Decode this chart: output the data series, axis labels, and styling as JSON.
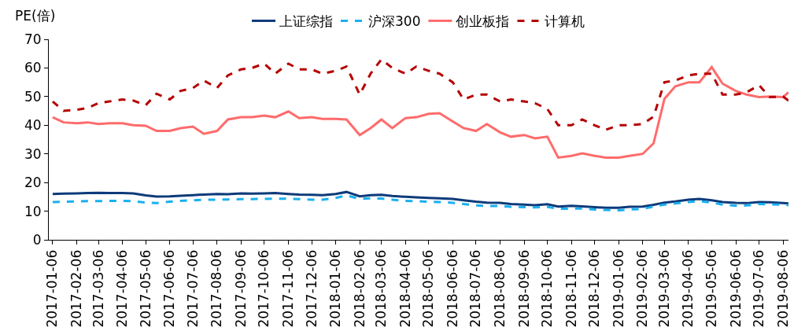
{
  "chart_data": {
    "type": "line",
    "ylabel": "PE(倍)",
    "legend": "top",
    "marker": "none",
    "x": [
      "2017-01-06",
      "2017-01-20",
      "2017-02-06",
      "2017-02-20",
      "2017-03-06",
      "2017-03-20",
      "2017-04-06",
      "2017-04-20",
      "2017-05-06",
      "2017-05-20",
      "2017-06-06",
      "2017-06-20",
      "2017-07-06",
      "2017-07-20",
      "2017-08-06",
      "2017-08-20",
      "2017-09-06",
      "2017-09-20",
      "2017-10-06",
      "2017-10-20",
      "2017-11-06",
      "2017-11-20",
      "2017-12-06",
      "2017-12-20",
      "2018-01-06",
      "2018-01-20",
      "2018-02-06",
      "2018-02-20",
      "2018-03-06",
      "2018-03-20",
      "2018-04-06",
      "2018-04-20",
      "2018-05-06",
      "2018-05-20",
      "2018-06-06",
      "2018-06-20",
      "2018-07-06",
      "2018-07-20",
      "2018-08-06",
      "2018-08-20",
      "2018-09-06",
      "2018-09-20",
      "2018-10-06",
      "2018-10-20",
      "2018-11-06",
      "2018-11-20",
      "2018-12-06",
      "2018-12-20",
      "2019-01-06",
      "2019-01-20",
      "2019-02-06",
      "2019-02-20",
      "2019-03-06",
      "2019-03-20",
      "2019-04-06",
      "2019-04-20",
      "2019-05-06",
      "2019-05-20",
      "2019-06-06",
      "2019-06-20",
      "2019-07-06",
      "2019-07-20",
      "2019-08-06",
      "2019-08-13"
    ],
    "xlim": [
      "2017-01-01",
      "2019-08-13"
    ],
    "xticks": [
      "2017-01-06",
      "2017-02-06",
      "2017-03-06",
      "2017-04-06",
      "2017-05-06",
      "2017-06-06",
      "2017-07-06",
      "2017-08-06",
      "2017-09-06",
      "2017-10-06",
      "2017-11-06",
      "2017-12-06",
      "2018-01-06",
      "2018-02-06",
      "2018-03-06",
      "2018-04-06",
      "2018-05-06",
      "2018-06-06",
      "2018-07-06",
      "2018-08-06",
      "2018-09-06",
      "2018-10-06",
      "2018-11-06",
      "2018-12-06",
      "2019-01-06",
      "2019-02-06",
      "2019-03-06",
      "2019-04-06",
      "2019-05-06",
      "2019-06-06",
      "2019-07-06",
      "2019-08-06"
    ],
    "ylim": [
      0,
      70
    ],
    "yticks": [
      0,
      10,
      20,
      30,
      40,
      50,
      60,
      70
    ],
    "series": [
      {
        "name": "上证综指",
        "color": "#0d3a7a",
        "line_style": "solid",
        "values": [
          16,
          16.1,
          16.2,
          16.3,
          16.4,
          16.3,
          16.3,
          16.2,
          15.5,
          15.1,
          15.2,
          15.4,
          15.6,
          15.8,
          16,
          15.9,
          16.2,
          16.1,
          16.2,
          16.3,
          16,
          15.8,
          15.7,
          15.6,
          16,
          16.7,
          15.2,
          15.6,
          15.7,
          15.3,
          15,
          14.8,
          14.6,
          14.5,
          14.3,
          13.8,
          13.3,
          13,
          12.9,
          12.5,
          12.3,
          12.1,
          12.4,
          11.6,
          11.9,
          11.7,
          11.4,
          11.2,
          11.2,
          11.5,
          11.6,
          12.2,
          13,
          13.4,
          14,
          14.3,
          13.8,
          13.2,
          12.9,
          12.8,
          13.2,
          13.1,
          12.8,
          12.7
        ]
      },
      {
        "name": "沪深300",
        "color": "#19b0f0",
        "line_style": "dashed",
        "values": [
          13.2,
          13.3,
          13.4,
          13.5,
          13.5,
          13.6,
          13.6,
          13.5,
          13,
          12.8,
          13.3,
          13.6,
          13.8,
          14,
          14,
          14.1,
          14.2,
          14.2,
          14.3,
          14.4,
          14.3,
          14.2,
          14,
          14,
          14.6,
          15.5,
          14.3,
          14.5,
          14.4,
          14,
          13.6,
          13.5,
          13.3,
          13.2,
          12.9,
          12.5,
          12,
          11.8,
          11.8,
          11.5,
          11.4,
          11.3,
          11.5,
          10.8,
          10.9,
          10.9,
          10.6,
          10.4,
          10.3,
          10.6,
          10.8,
          11.6,
          12.3,
          12.7,
          13.2,
          13.5,
          13,
          12.3,
          11.9,
          12,
          12.5,
          12.4,
          12.2,
          12.1
        ]
      },
      {
        "name": "创业板指",
        "color": "#ff6b6b",
        "line_style": "solid",
        "values": [
          42.8,
          41,
          40.7,
          41,
          40.4,
          40.7,
          40.7,
          40,
          39.8,
          38,
          38,
          39,
          39.5,
          37,
          38,
          42,
          42.8,
          42.8,
          43.4,
          42.8,
          44.8,
          42.5,
          42.8,
          42.2,
          42.2,
          42,
          36.6,
          39,
          42,
          39,
          42.5,
          42.8,
          44,
          44.2,
          41.3,
          39,
          38,
          40.4,
          37.5,
          36,
          36.6,
          35.4,
          36,
          28.7,
          29.3,
          30.2,
          29.3,
          28.7,
          28.7,
          29.3,
          30,
          33.7,
          49.2,
          53.6,
          55,
          55,
          60.3,
          54.5,
          52,
          50.7,
          49.8,
          50,
          49.8,
          51.5
        ]
      },
      {
        "name": "计算机",
        "color": "#b50000",
        "line_style": "dashed",
        "values": [
          48.3,
          45,
          45.4,
          46,
          47.7,
          48.3,
          49,
          48.6,
          47,
          51,
          49,
          52,
          53,
          55.6,
          53,
          57.4,
          59.5,
          60,
          61.5,
          58,
          61.5,
          59.5,
          59.5,
          58,
          59,
          60.5,
          50.7,
          58,
          63,
          60,
          58,
          60.5,
          59,
          58,
          55,
          49,
          50.7,
          50.7,
          48.3,
          49,
          48.3,
          47.7,
          45.7,
          40,
          40,
          42,
          40,
          38.4,
          40,
          40,
          40.4,
          43,
          55,
          55.6,
          57.4,
          58,
          58,
          50.7,
          50.7,
          51.5,
          54,
          49.8,
          50,
          48.6
        ]
      }
    ]
  }
}
